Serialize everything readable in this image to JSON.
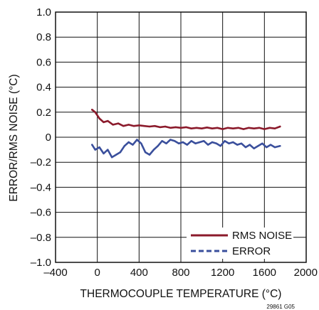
{
  "chart_data": {
    "type": "line",
    "title": "",
    "xlabel": "THERMOCOUPLE TEMPERATURE (°C)",
    "ylabel": "ERROR/RMS NOISE (°C)",
    "xlim": [
      -400,
      2000
    ],
    "ylim": [
      -1.0,
      1.0
    ],
    "x_ticks": [
      -400,
      0,
      400,
      800,
      1200,
      1600,
      2000
    ],
    "x_tick_labels": [
      "–400",
      "0",
      "400",
      "800",
      "1200",
      "1600",
      "2000"
    ],
    "y_ticks": [
      1.0,
      0.8,
      0.6,
      0.4,
      0.2,
      0,
      -0.2,
      -0.4,
      -0.6,
      -0.8,
      -1.0
    ],
    "y_tick_labels": [
      "1.0",
      "0.8",
      "0.6",
      "0.4",
      "0.2",
      "0",
      "–0.2",
      "–0.4",
      "–0.6",
      "–0.8",
      "–1.0"
    ],
    "grid": true,
    "legend_position": "bottom-right",
    "figure_code": "29861 G05",
    "series": [
      {
        "name": "RMS NOISE",
        "color": "#8b1a2b",
        "style": "solid",
        "x": [
          -50,
          -20,
          20,
          60,
          100,
          150,
          200,
          250,
          300,
          350,
          400,
          450,
          500,
          550,
          600,
          650,
          700,
          750,
          800,
          850,
          900,
          950,
          1000,
          1050,
          1100,
          1150,
          1200,
          1250,
          1300,
          1350,
          1400,
          1450,
          1500,
          1550,
          1600,
          1650,
          1700,
          1750
        ],
        "y": [
          0.22,
          0.2,
          0.15,
          0.12,
          0.13,
          0.1,
          0.11,
          0.09,
          0.1,
          0.09,
          0.095,
          0.09,
          0.085,
          0.09,
          0.08,
          0.085,
          0.075,
          0.08,
          0.075,
          0.08,
          0.07,
          0.075,
          0.07,
          0.078,
          0.07,
          0.075,
          0.065,
          0.075,
          0.07,
          0.075,
          0.065,
          0.075,
          0.07,
          0.075,
          0.065,
          0.075,
          0.07,
          0.085
        ]
      },
      {
        "name": "ERROR",
        "color": "#3a4f9c",
        "style": "dashed",
        "x": [
          -50,
          -20,
          20,
          60,
          100,
          140,
          180,
          220,
          260,
          300,
          340,
          380,
          420,
          460,
          500,
          540,
          580,
          620,
          660,
          700,
          740,
          780,
          820,
          860,
          900,
          940,
          980,
          1020,
          1060,
          1100,
          1140,
          1180,
          1220,
          1260,
          1300,
          1340,
          1380,
          1420,
          1460,
          1500,
          1540,
          1580,
          1620,
          1660,
          1700,
          1750
        ],
        "y": [
          -0.06,
          -0.1,
          -0.08,
          -0.13,
          -0.1,
          -0.16,
          -0.14,
          -0.12,
          -0.07,
          -0.04,
          -0.06,
          -0.02,
          -0.05,
          -0.12,
          -0.14,
          -0.1,
          -0.07,
          -0.03,
          -0.05,
          -0.02,
          -0.03,
          -0.05,
          -0.04,
          -0.06,
          -0.03,
          -0.05,
          -0.04,
          -0.03,
          -0.06,
          -0.04,
          -0.05,
          -0.07,
          -0.03,
          -0.05,
          -0.04,
          -0.06,
          -0.05,
          -0.08,
          -0.06,
          -0.09,
          -0.07,
          -0.05,
          -0.08,
          -0.06,
          -0.08,
          -0.07
        ]
      }
    ]
  }
}
